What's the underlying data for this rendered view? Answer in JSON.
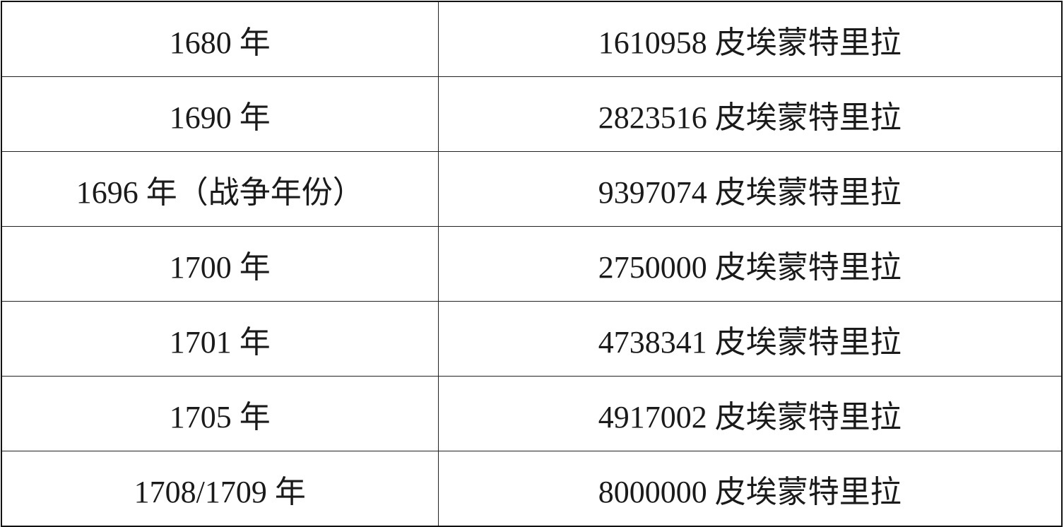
{
  "table": {
    "rows": [
      {
        "year": "1680 年",
        "amount": "1610958 皮埃蒙特里拉"
      },
      {
        "year": "1690 年",
        "amount": "2823516 皮埃蒙特里拉"
      },
      {
        "year": "1696 年（战争年份）",
        "amount": "9397074 皮埃蒙特里拉"
      },
      {
        "year": "1700 年",
        "amount": "2750000 皮埃蒙特里拉"
      },
      {
        "year": "1701 年",
        "amount": "4738341 皮埃蒙特里拉"
      },
      {
        "year": "1705 年",
        "amount": "4917002 皮埃蒙特里拉"
      },
      {
        "year": "1708/1709 年",
        "amount": "8000000 皮埃蒙特里拉"
      }
    ]
  }
}
